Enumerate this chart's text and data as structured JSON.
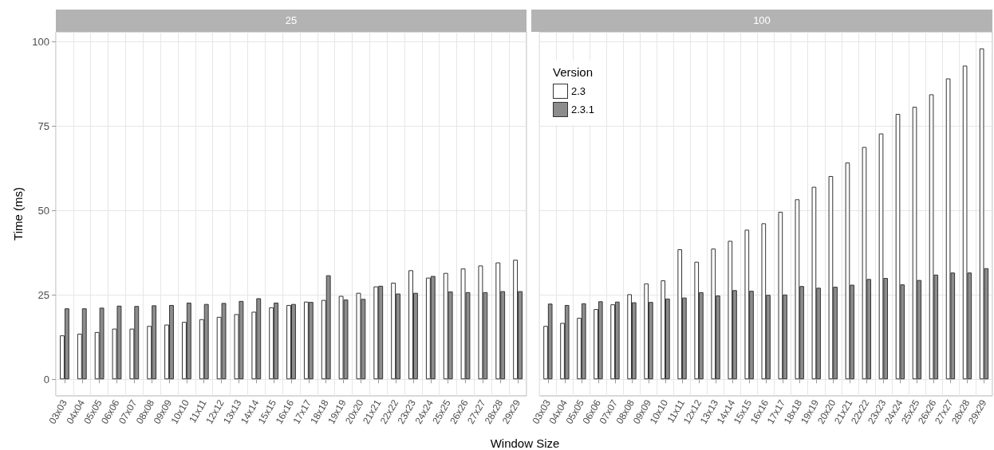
{
  "chart_data": [
    {
      "type": "bar",
      "title": "25",
      "xlabel": "Window Size",
      "ylabel": "Time (ms)",
      "categories": [
        "03x03",
        "04x04",
        "05x05",
        "06x06",
        "07x07",
        "08x08",
        "09x09",
        "10x10",
        "11x11",
        "12x12",
        "13x13",
        "14x14",
        "15x15",
        "16x16",
        "17x17",
        "18x18",
        "19x19",
        "20x20",
        "21x21",
        "22x22",
        "23x23",
        "24x24",
        "25x25",
        "26x26",
        "27x27",
        "28x28",
        "29x29"
      ],
      "series": [
        {
          "color": "#ffffff",
          "values": [
            13,
            13.5,
            14,
            15,
            15,
            15.8,
            16.2,
            17,
            17.8,
            18.5,
            19.3,
            20,
            21.3,
            22,
            23,
            23.5,
            24.7,
            25.6,
            27.5,
            28.6,
            32.3,
            30.1,
            31.5,
            32.8,
            33.7,
            34.6,
            35.4
          ]
        },
        {
          "color": "#8c8c8c",
          "values": [
            21,
            21,
            21.2,
            21.8,
            21.7,
            21.9,
            22,
            22.7,
            22.3,
            22.6,
            23.2,
            24,
            22.7,
            22.3,
            22.9,
            30.8,
            23.6,
            23.8,
            27.7,
            25.4,
            25.6,
            30.6,
            26,
            25.8,
            25.8,
            26.1,
            26.1
          ]
        }
      ],
      "ylim": [
        -4.9,
        102.9
      ],
      "yticks": [
        0,
        25,
        50,
        75,
        100
      ],
      "grid": true,
      "legend": false
    },
    {
      "type": "bar",
      "title": "100",
      "legend_title": "Version",
      "categories": [
        "03x03",
        "04x04",
        "05x05",
        "06x06",
        "07x07",
        "08x08",
        "09x09",
        "10x10",
        "11x11",
        "12x12",
        "13x13",
        "14x14",
        "15x15",
        "16x16",
        "17x17",
        "18x18",
        "19x19",
        "20x20",
        "21x21",
        "22x22",
        "23x23",
        "24x24",
        "25x25",
        "26x26",
        "27x27",
        "28x28",
        "29x29"
      ],
      "series": [
        {
          "name": "2.3",
          "color": "#ffffff",
          "values": [
            15.8,
            16.7,
            18.2,
            20.8,
            22.2,
            25.2,
            28.4,
            29.3,
            38.5,
            34.8,
            38.7,
            41,
            44.3,
            46.2,
            49.6,
            53.3,
            57,
            60.2,
            64.2,
            68.8,
            72.8,
            78.6,
            80.7,
            84.4,
            89.1,
            92.9,
            98
          ]
        },
        {
          "name": "2.3.1",
          "color": "#8c8c8c",
          "values": [
            22.4,
            22,
            22.5,
            23.1,
            23,
            22.8,
            22.9,
            23.9,
            24.2,
            25.8,
            24.8,
            26.4,
            26.2,
            25,
            25.1,
            27.6,
            27.1,
            27.4,
            28,
            29.7,
            30,
            28.1,
            29.4,
            31,
            31.6,
            31.6,
            32.9
          ]
        }
      ],
      "ylim": [
        -4.9,
        102.9
      ],
      "yticks": [
        0,
        25,
        50,
        75,
        100
      ],
      "grid": true,
      "legend": "top left",
      "tick_labels": "x"
    }
  ]
}
